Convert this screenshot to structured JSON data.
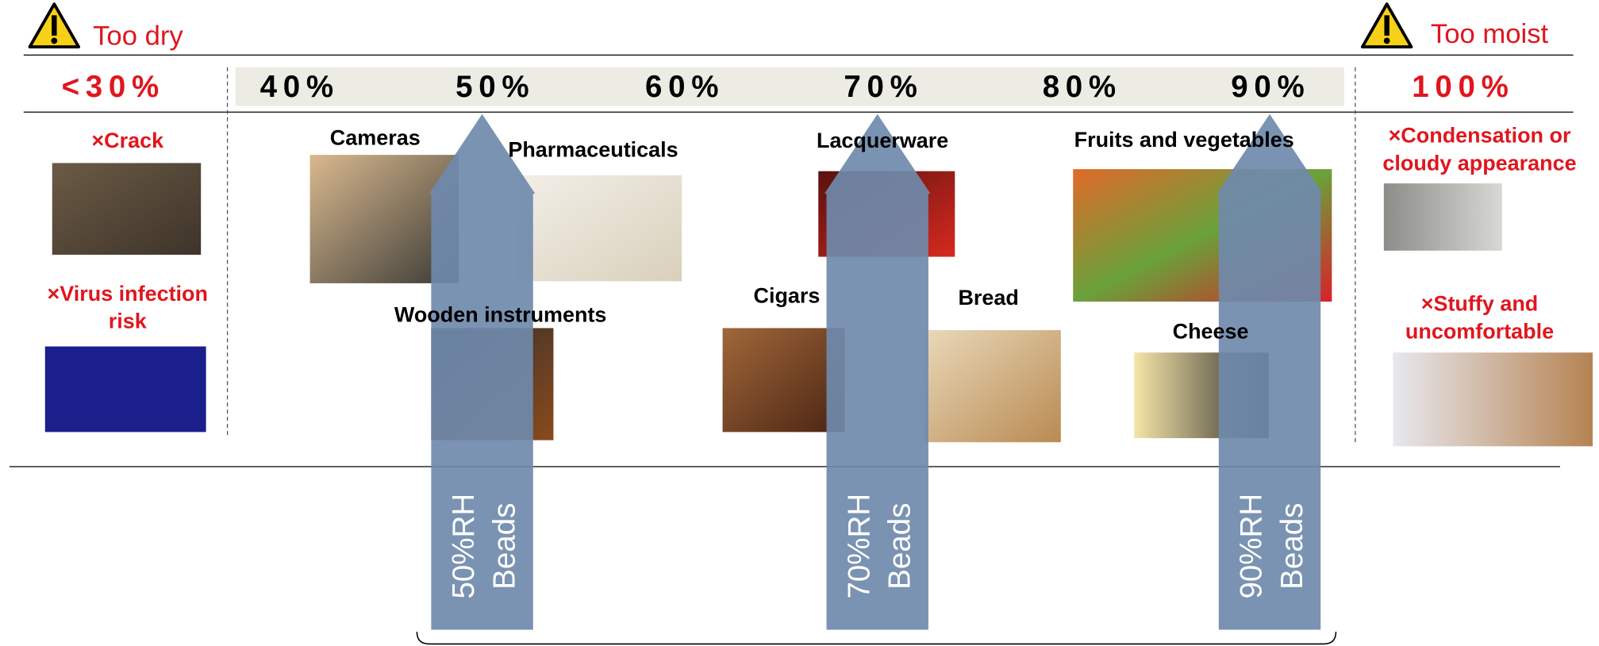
{
  "warnings": {
    "dry": "Too dry",
    "moist": "Too moist"
  },
  "scale": {
    "low": "<30%",
    "ticks": [
      "40%",
      "50%",
      "60%",
      "70%",
      "80%",
      "90%"
    ],
    "high": "100%"
  },
  "dry_effects": [
    [
      "×Crack"
    ],
    [
      "×Virus infection",
      "risk"
    ]
  ],
  "moist_effects": [
    [
      "×Condensation or",
      "cloudy appearance"
    ],
    [
      "×Stuffy and",
      "uncomfortable"
    ]
  ],
  "items": [
    "Cameras",
    "Pharmaceuticals",
    "Wooden instruments",
    "Lacquerware",
    "Cigars",
    "Bread",
    "Fruits and vegetables",
    "Cheese"
  ],
  "beads": [
    [
      "50%RH",
      "Beads"
    ],
    [
      "70%RH",
      "Beads"
    ],
    [
      "90%RH",
      "Beads"
    ]
  ]
}
